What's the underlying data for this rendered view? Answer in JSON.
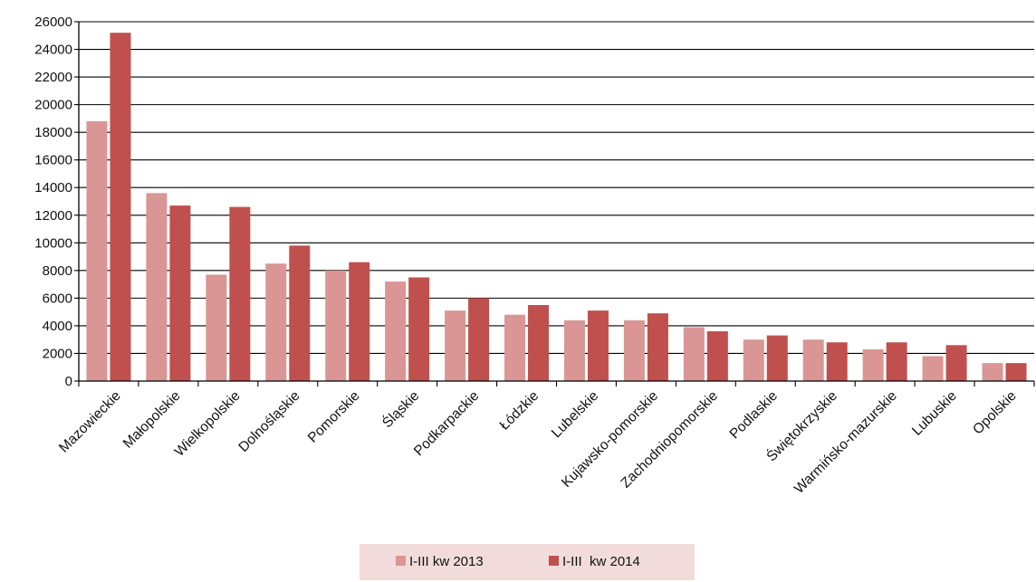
{
  "chart_data": {
    "type": "bar",
    "title": "",
    "xlabel": "",
    "ylabel": "",
    "ylim": [
      0,
      26000
    ],
    "yticks": [
      0,
      2000,
      4000,
      6000,
      8000,
      10000,
      12000,
      14000,
      16000,
      18000,
      20000,
      22000,
      24000,
      26000
    ],
    "grid": true,
    "legend_position": "bottom",
    "categories": [
      "Mazowieckie",
      "Małopolskie",
      "Wielkopolskie",
      "Dolnośląskie",
      "Pomorskie",
      "Śląskie",
      "Podkarpackie",
      "Łódzkie",
      "Lubelskie",
      "Kujawsko-pomorskie",
      "Zachodniopomorskie",
      "Podlaskie",
      "Świętokrzyskie",
      "Warmińsko-mazurskie",
      "Lubuskie",
      "Opolskie"
    ],
    "series": [
      {
        "name": "I-III kw 2013",
        "color": "#d99694",
        "values": [
          18800,
          13600,
          7700,
          8500,
          8000,
          7200,
          5100,
          4800,
          4400,
          4400,
          3900,
          3000,
          3000,
          2300,
          1800,
          1300
        ]
      },
      {
        "name": "I-III  kw 2014",
        "color": "#c0504d",
        "values": [
          25200,
          12700,
          12600,
          9800,
          8600,
          7500,
          6000,
          5500,
          5100,
          4900,
          3600,
          3300,
          2800,
          2800,
          2600,
          1300
        ]
      }
    ],
    "legend_background": "#f2dcdb"
  }
}
